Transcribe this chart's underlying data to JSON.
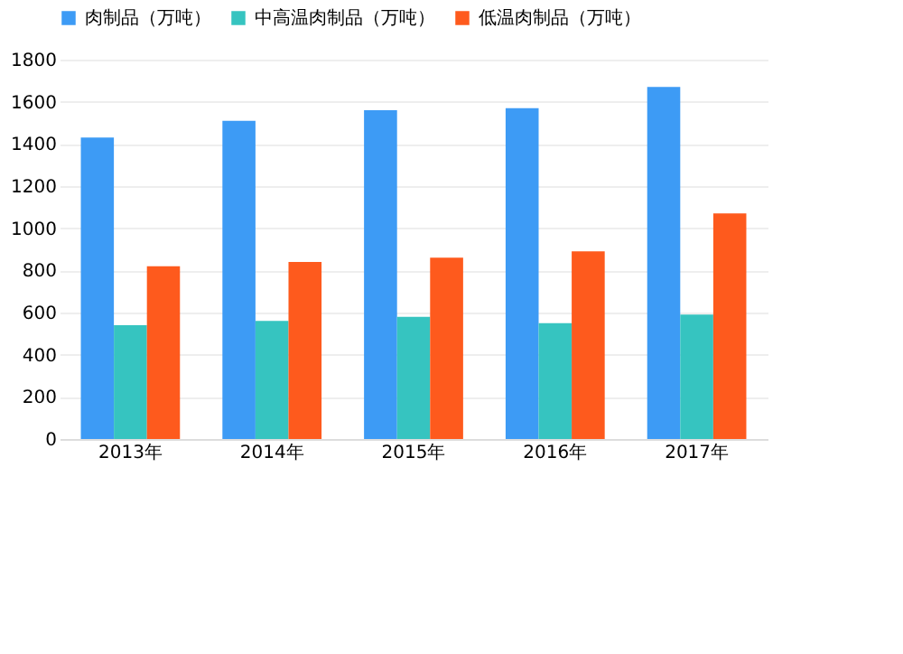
{
  "chart_data": {
    "type": "bar",
    "categories": [
      "2013年",
      "2014年",
      "2015年",
      "2016年",
      "2017年"
    ],
    "series": [
      {
        "name": "肉制品（万吨）",
        "color": "#3d9bf5",
        "values": [
          1430,
          1510,
          1560,
          1570,
          1670
        ]
      },
      {
        "name": "中高温肉制品（万吨）",
        "color": "#36c4c0",
        "values": [
          540,
          560,
          580,
          550,
          590
        ]
      },
      {
        "name": "低温肉制品（万吨）",
        "color": "#fe5a1d",
        "values": [
          820,
          840,
          860,
          890,
          1070
        ]
      }
    ],
    "ylim": [
      0,
      1800
    ],
    "yticks": [
      0,
      200,
      400,
      600,
      800,
      1000,
      1200,
      1400,
      1600,
      1800
    ],
    "grid": "y",
    "legend": "top"
  }
}
